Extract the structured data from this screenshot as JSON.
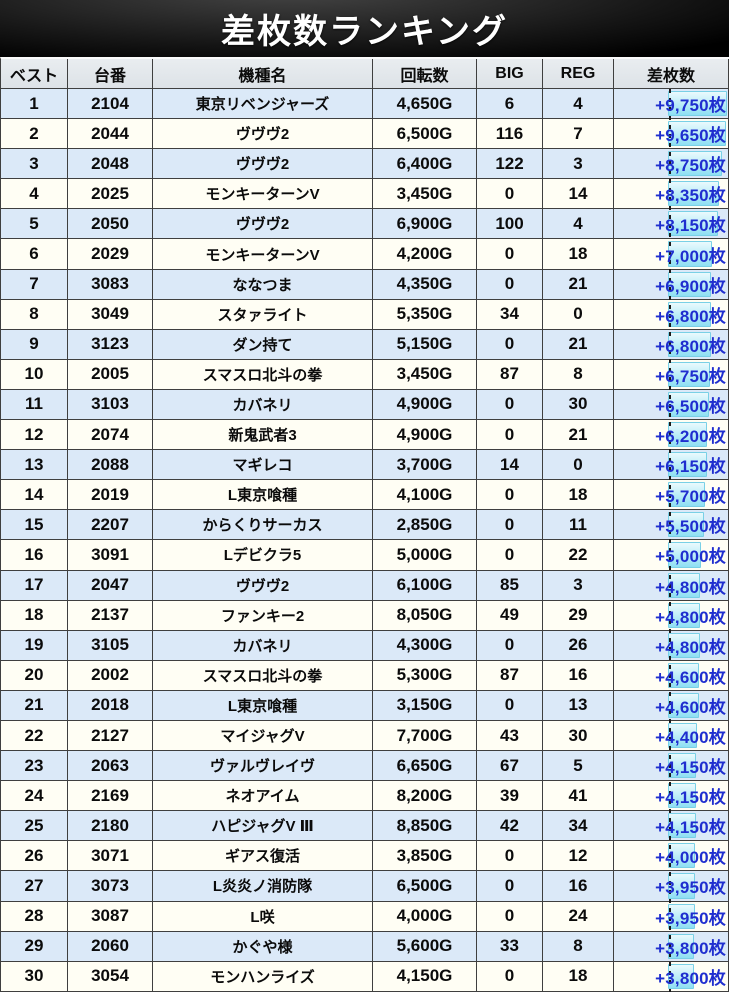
{
  "title": "差枚数ランキング",
  "colors": {
    "title_text": "#ffffff",
    "body_text": "#0b0b0b",
    "grid_line": "#3f3f3f",
    "row_odd": "#dbe9f8",
    "row_even": "#fffef4",
    "header_bg": "#e2e6ea",
    "diff_text": "#1f2ecf",
    "bar_border": "#79d0e6",
    "bar_fill_top": "#eafafd",
    "bar_fill_bottom": "#8edff3",
    "page_break": "#1a1a1a"
  },
  "table": {
    "headers": [
      "ベスト",
      "台番",
      "機種名",
      "回転数",
      "BIG",
      "REG",
      "差枚数"
    ],
    "header_keys": [
      "rank",
      "machine-number",
      "model-name",
      "spins",
      "big",
      "reg",
      "diff"
    ],
    "rows": [
      {
        "rank": "1",
        "machine_no": "2104",
        "model": "東京リベンジャーズ",
        "spins": "4,650G",
        "big": "6",
        "reg": "4",
        "diff": "+9,750枚",
        "diff_value": 9750
      },
      {
        "rank": "2",
        "machine_no": "2044",
        "model": "ヴヴヴ2",
        "spins": "6,500G",
        "big": "116",
        "reg": "7",
        "diff": "+9,650枚",
        "diff_value": 9650
      },
      {
        "rank": "3",
        "machine_no": "2048",
        "model": "ヴヴヴ2",
        "spins": "6,400G",
        "big": "122",
        "reg": "3",
        "diff": "+8,750枚",
        "diff_value": 8750
      },
      {
        "rank": "4",
        "machine_no": "2025",
        "model": "モンキーターンV",
        "spins": "3,450G",
        "big": "0",
        "reg": "14",
        "diff": "+8,350枚",
        "diff_value": 8350
      },
      {
        "rank": "5",
        "machine_no": "2050",
        "model": "ヴヴヴ2",
        "spins": "6,900G",
        "big": "100",
        "reg": "4",
        "diff": "+8,150枚",
        "diff_value": 8150
      },
      {
        "rank": "6",
        "machine_no": "2029",
        "model": "モンキーターンV",
        "spins": "4,200G",
        "big": "0",
        "reg": "18",
        "diff": "+7,000枚",
        "diff_value": 7000
      },
      {
        "rank": "7",
        "machine_no": "3083",
        "model": "ななつま",
        "spins": "4,350G",
        "big": "0",
        "reg": "21",
        "diff": "+6,900枚",
        "diff_value": 6900
      },
      {
        "rank": "8",
        "machine_no": "3049",
        "model": "スタァライト",
        "spins": "5,350G",
        "big": "34",
        "reg": "0",
        "diff": "+6,800枚",
        "diff_value": 6800
      },
      {
        "rank": "9",
        "machine_no": "3123",
        "model": "ダン持て",
        "spins": "5,150G",
        "big": "0",
        "reg": "21",
        "diff": "+6,800枚",
        "diff_value": 6800
      },
      {
        "rank": "10",
        "machine_no": "2005",
        "model": "スマスロ北斗の拳",
        "spins": "3,450G",
        "big": "87",
        "reg": "8",
        "diff": "+6,750枚",
        "diff_value": 6750
      },
      {
        "rank": "11",
        "machine_no": "3103",
        "model": "カバネリ",
        "spins": "4,900G",
        "big": "0",
        "reg": "30",
        "diff": "+6,500枚",
        "diff_value": 6500
      },
      {
        "rank": "12",
        "machine_no": "2074",
        "model": "新鬼武者3",
        "spins": "4,900G",
        "big": "0",
        "reg": "21",
        "diff": "+6,200枚",
        "diff_value": 6200
      },
      {
        "rank": "13",
        "machine_no": "2088",
        "model": "マギレコ",
        "spins": "3,700G",
        "big": "14",
        "reg": "0",
        "diff": "+6,150枚",
        "diff_value": 6150
      },
      {
        "rank": "14",
        "machine_no": "2019",
        "model": "L東京喰種",
        "spins": "4,100G",
        "big": "0",
        "reg": "18",
        "diff": "+5,700枚",
        "diff_value": 5700
      },
      {
        "rank": "15",
        "machine_no": "2207",
        "model": "からくりサーカス",
        "spins": "2,850G",
        "big": "0",
        "reg": "11",
        "diff": "+5,500枚",
        "diff_value": 5500
      },
      {
        "rank": "16",
        "machine_no": "3091",
        "model": "Lデビクラ5",
        "spins": "5,000G",
        "big": "0",
        "reg": "22",
        "diff": "+5,000枚",
        "diff_value": 5000
      },
      {
        "rank": "17",
        "machine_no": "2047",
        "model": "ヴヴヴ2",
        "spins": "6,100G",
        "big": "85",
        "reg": "3",
        "diff": "+4,800枚",
        "diff_value": 4800
      },
      {
        "rank": "18",
        "machine_no": "2137",
        "model": "ファンキー2",
        "spins": "8,050G",
        "big": "49",
        "reg": "29",
        "diff": "+4,800枚",
        "diff_value": 4800
      },
      {
        "rank": "19",
        "machine_no": "3105",
        "model": "カバネリ",
        "spins": "4,300G",
        "big": "0",
        "reg": "26",
        "diff": "+4,800枚",
        "diff_value": 4800
      },
      {
        "rank": "20",
        "machine_no": "2002",
        "model": "スマスロ北斗の拳",
        "spins": "5,300G",
        "big": "87",
        "reg": "16",
        "diff": "+4,600枚",
        "diff_value": 4600
      },
      {
        "rank": "21",
        "machine_no": "2018",
        "model": "L東京喰種",
        "spins": "3,150G",
        "big": "0",
        "reg": "13",
        "diff": "+4,600枚",
        "diff_value": 4600
      },
      {
        "rank": "22",
        "machine_no": "2127",
        "model": "マイジャグV",
        "spins": "7,700G",
        "big": "43",
        "reg": "30",
        "diff": "+4,400枚",
        "diff_value": 4400
      },
      {
        "rank": "23",
        "machine_no": "2063",
        "model": "ヴァルヴレイヴ",
        "spins": "6,650G",
        "big": "67",
        "reg": "5",
        "diff": "+4,150枚",
        "diff_value": 4150
      },
      {
        "rank": "24",
        "machine_no": "2169",
        "model": "ネオアイム",
        "spins": "8,200G",
        "big": "39",
        "reg": "41",
        "diff": "+4,150枚",
        "diff_value": 4150
      },
      {
        "rank": "25",
        "machine_no": "2180",
        "model": "ハピジャグV Ⅲ",
        "spins": "8,850G",
        "big": "42",
        "reg": "34",
        "diff": "+4,150枚",
        "diff_value": 4150
      },
      {
        "rank": "26",
        "machine_no": "3071",
        "model": "ギアス復活",
        "spins": "3,850G",
        "big": "0",
        "reg": "12",
        "diff": "+4,000枚",
        "diff_value": 4000
      },
      {
        "rank": "27",
        "machine_no": "3073",
        "model": "L炎炎ノ消防隊",
        "spins": "6,500G",
        "big": "0",
        "reg": "16",
        "diff": "+3,950枚",
        "diff_value": 3950
      },
      {
        "rank": "28",
        "machine_no": "3087",
        "model": "L咲",
        "spins": "4,000G",
        "big": "0",
        "reg": "24",
        "diff": "+3,950枚",
        "diff_value": 3950
      },
      {
        "rank": "29",
        "machine_no": "2060",
        "model": "かぐや様",
        "spins": "5,600G",
        "big": "33",
        "reg": "8",
        "diff": "+3,800枚",
        "diff_value": 3800
      },
      {
        "rank": "30",
        "machine_no": "3054",
        "model": "モンハンライズ",
        "spins": "4,150G",
        "big": "0",
        "reg": "18",
        "diff": "+3,800枚",
        "diff_value": 3800
      }
    ]
  }
}
